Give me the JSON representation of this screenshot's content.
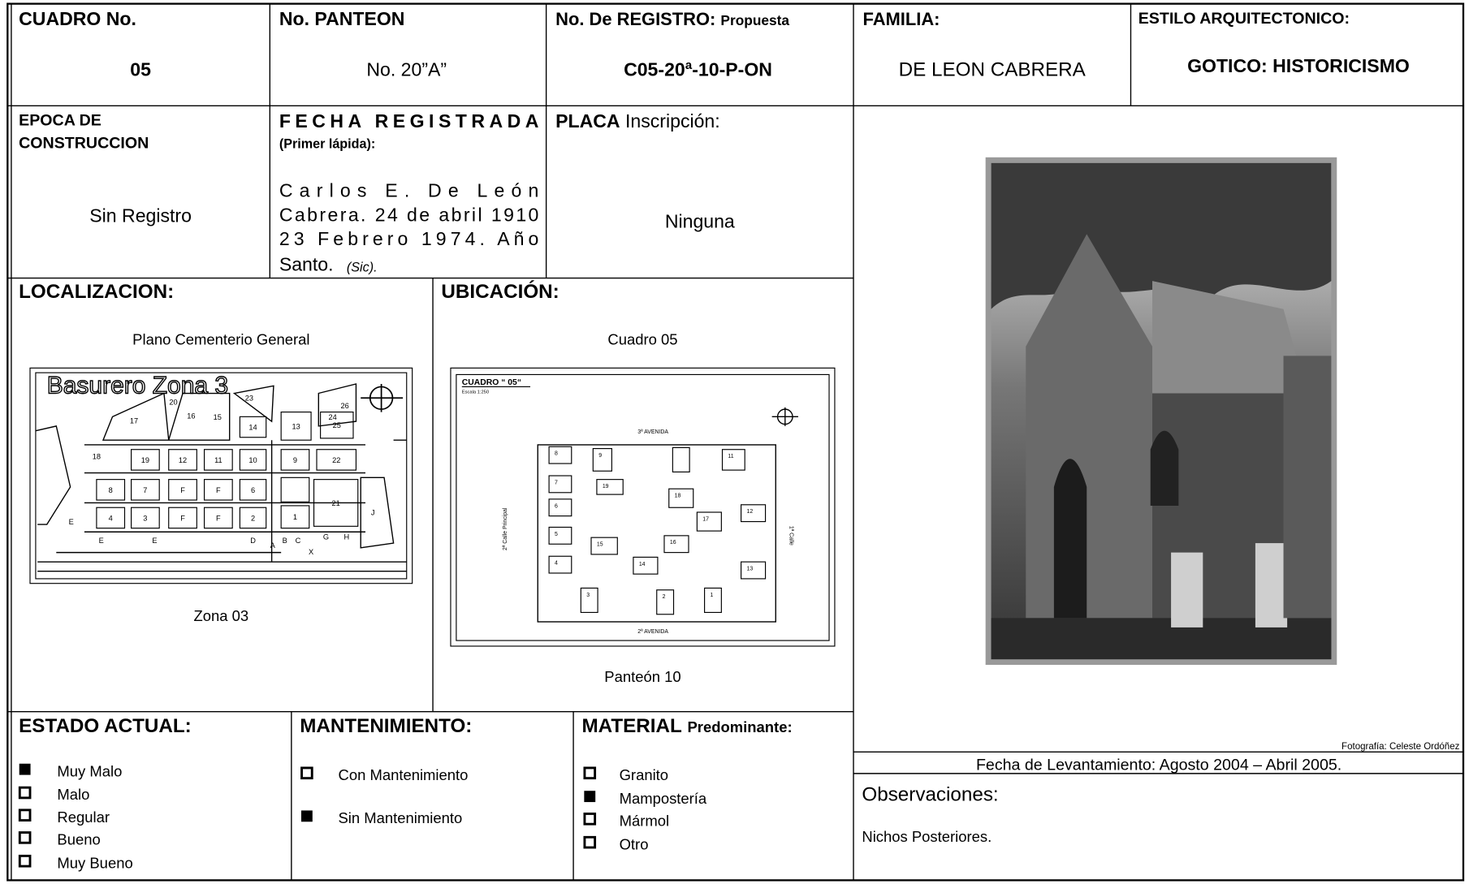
{
  "header": {
    "cuadro": {
      "label": "CUADRO No.",
      "value": "05"
    },
    "panteon": {
      "label": "No. PANTEON",
      "value": "No. 20”A”"
    },
    "registro": {
      "label": "No. De REGISTRO:",
      "label_note": "Propuesta",
      "value": "C05-20ª-10-P-ON"
    },
    "familia": {
      "label": "FAMILIA:",
      "value": "DE LEON CABRERA"
    },
    "estilo": {
      "label": "ESTILO ARQUITECTONICO:",
      "value": "GOTICO: HISTORICISMO"
    }
  },
  "details": {
    "epoca": {
      "label_lines": [
        "EPOCA DE",
        "CONSTRUCCION"
      ],
      "value": "Sin Registro"
    },
    "fecha": {
      "label": "FECHA REGISTRADA",
      "sublabel": "(Primer lápida):",
      "value_lines": [
        "Carlos E. De León",
        "Cabrera. 24 de abril 1910",
        "23 Febrero 1974. Año",
        "Santo."
      ],
      "note": "(Sic)."
    },
    "placa": {
      "label": "PLACA",
      "label_note": "Inscripción:",
      "value": "Ninguna"
    }
  },
  "localizacion": {
    "label": "LOCALIZACION:",
    "caption": "Plano Cementerio General",
    "map_title": "Basurero Zona 3",
    "boxed_plots": [
      "19",
      "12",
      "11",
      "10",
      "9",
      "22",
      "8",
      "7",
      "F",
      "F",
      "6",
      "21",
      "4",
      "3",
      "F",
      "F",
      "2",
      "1",
      "14",
      "13",
      "25"
    ],
    "labels": [
      "20",
      "23",
      "26",
      "17",
      "16",
      "15",
      "24",
      "18",
      "J",
      "E",
      "E",
      "E",
      "D",
      "A",
      "B",
      "C",
      "G",
      "H",
      "X"
    ],
    "footer": "Zona 03"
  },
  "ubicacion": {
    "label": "UBICACIÓN:",
    "caption": "Cuadro 05",
    "map_title": "CUADRO “ 05“",
    "scale": "Escala 1:250",
    "streets": [
      "3ª AVENIDA",
      "2ª AVENIDA",
      "2ª Calle Principal",
      "1ª Calle"
    ],
    "plots": [
      "8",
      "9",
      "11",
      "7",
      "19",
      "6",
      "18",
      "12",
      "17",
      "5",
      "15",
      "16",
      "4",
      "14",
      "13",
      "3",
      "2",
      "1"
    ],
    "footer": "Panteón 10"
  },
  "estado": {
    "label": "ESTADO ACTUAL:",
    "options": [
      {
        "text": "Muy Malo",
        "checked": true
      },
      {
        "text": "Malo",
        "checked": false
      },
      {
        "text": "Regular",
        "checked": false
      },
      {
        "text": "Bueno",
        "checked": false
      },
      {
        "text": "Muy Bueno",
        "checked": false
      }
    ]
  },
  "mantenimiento": {
    "label": "MANTENIMIENTO:",
    "options": [
      {
        "text": "Con Mantenimiento",
        "checked": false
      },
      {
        "text": "Sin Mantenimiento",
        "checked": true
      }
    ]
  },
  "material": {
    "label": "MATERIAL",
    "label_note": "Predominante:",
    "options": [
      {
        "text": "Granito",
        "checked": false
      },
      {
        "text": "Mampostería",
        "checked": true
      },
      {
        "text": "Mármol",
        "checked": false
      },
      {
        "text": "Otro",
        "checked": false
      }
    ]
  },
  "photo_credit": "Fotografía:  Celeste Ordóñez",
  "fecha_levantamiento": "Fecha de Levantamiento: Agosto 2004 – Abril 2005.",
  "observaciones": {
    "label": "Observaciones:",
    "text": "Nichos Posteriores."
  }
}
